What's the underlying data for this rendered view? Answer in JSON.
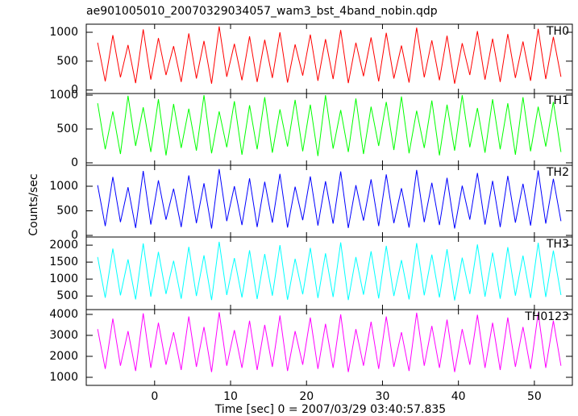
{
  "chart_data": [
    {
      "type": "line",
      "title": "ae901005010_20070329034057_wam3_bst_4band_nobin.qdp",
      "ylabel": "Counts/sec",
      "x": [
        -7.5,
        -6.5,
        -5.5,
        -4.5,
        -3.5,
        -2.5,
        -1.5,
        -0.5,
        0.5,
        1.5,
        2.5,
        3.5,
        4.5,
        5.5,
        6.5,
        7.5,
        8.5,
        9.5,
        10.5,
        11.5,
        12.5,
        13.5,
        14.5,
        15.5,
        16.5,
        17.5,
        18.5,
        19.5,
        20.5,
        21.5,
        22.5,
        23.5,
        24.5,
        25.5,
        26.5,
        27.5,
        28.5,
        29.5,
        30.5,
        31.5,
        32.5,
        33.5,
        34.5,
        35.5,
        36.5,
        37.5,
        38.5,
        39.5,
        40.5,
        41.5,
        42.5,
        43.5,
        44.5,
        45.5,
        46.5,
        47.5,
        48.5,
        49.5,
        50.5,
        51.5,
        52.5,
        53.5
      ],
      "series": [
        {
          "name": "TH0",
          "color": "#ff0000",
          "values": [
            820,
            150,
            950,
            220,
            780,
            120,
            1050,
            180,
            900,
            260,
            760,
            140,
            980,
            200,
            850,
            110,
            1100,
            230,
            800,
            170,
            930,
            140,
            870,
            210,
            1000,
            130,
            790,
            250,
            960,
            160,
            880,
            190,
            1040,
            120,
            820,
            240,
            910,
            150,
            990,
            200,
            770,
            130,
            1080,
            220,
            860,
            170,
            940,
            110,
            810,
            260,
            1020,
            180,
            890,
            140,
            970,
            210,
            840,
            160,
            1060,
            190,
            920,
            230
          ]
        }
      ],
      "ylim": [
        -60,
        1140
      ],
      "yticks": [
        0,
        500,
        1000
      ]
    },
    {
      "type": "line",
      "x": [
        -7.5,
        -6.5,
        -5.5,
        -4.5,
        -3.5,
        -2.5,
        -1.5,
        -0.5,
        0.5,
        1.5,
        2.5,
        3.5,
        4.5,
        5.5,
        6.5,
        7.5,
        8.5,
        9.5,
        10.5,
        11.5,
        12.5,
        13.5,
        14.5,
        15.5,
        16.5,
        17.5,
        18.5,
        19.5,
        20.5,
        21.5,
        22.5,
        23.5,
        24.5,
        25.5,
        26.5,
        27.5,
        28.5,
        29.5,
        30.5,
        31.5,
        32.5,
        33.5,
        34.5,
        35.5,
        36.5,
        37.5,
        38.5,
        39.5,
        40.5,
        41.5,
        42.5,
        43.5,
        44.5,
        45.5,
        46.5,
        47.5,
        48.5,
        49.5,
        50.5,
        51.5,
        52.5,
        53.5
      ],
      "series": [
        {
          "name": "TH1",
          "color": "#00ff00",
          "values": [
            880,
            200,
            760,
            130,
            990,
            250,
            820,
            160,
            940,
            110,
            870,
            220,
            800,
            180,
            1000,
            140,
            760,
            230,
            910,
            120,
            850,
            200,
            970,
            150,
            790,
            240,
            930,
            170,
            860,
            100,
            1000,
            210,
            780,
            160,
            950,
            130,
            830,
            250,
            900,
            190,
            980,
            140,
            770,
            220,
            920,
            110,
            860,
            180,
            1000,
            230,
            810,
            150,
            940,
            200,
            880,
            120,
            970,
            170,
            830,
            240,
            900,
            160
          ]
        }
      ],
      "ylim": [
        -36,
        1024
      ],
      "yticks": [
        0,
        500,
        1000
      ]
    },
    {
      "type": "line",
      "x": [
        -7.5,
        -6.5,
        -5.5,
        -4.5,
        -3.5,
        -2.5,
        -1.5,
        -0.5,
        0.5,
        1.5,
        2.5,
        3.5,
        4.5,
        5.5,
        6.5,
        7.5,
        8.5,
        9.5,
        10.5,
        11.5,
        12.5,
        13.5,
        14.5,
        15.5,
        16.5,
        17.5,
        18.5,
        19.5,
        20.5,
        21.5,
        22.5,
        23.5,
        24.5,
        25.5,
        26.5,
        27.5,
        28.5,
        29.5,
        30.5,
        31.5,
        32.5,
        33.5,
        34.5,
        35.5,
        36.5,
        37.5,
        38.5,
        39.5,
        40.5,
        41.5,
        42.5,
        43.5,
        44.5,
        45.5,
        46.5,
        47.5,
        48.5,
        49.5,
        50.5,
        51.5,
        52.5,
        53.5
      ],
      "series": [
        {
          "name": "TH2",
          "color": "#0000ff",
          "values": [
            1020,
            190,
            1190,
            270,
            980,
            150,
            1310,
            220,
            1120,
            320,
            950,
            170,
            1220,
            250,
            1060,
            140,
            1350,
            290,
            1000,
            210,
            1160,
            170,
            1090,
            260,
            1250,
            160,
            990,
            310,
            1200,
            200,
            1100,
            240,
            1300,
            150,
            1020,
            300,
            1140,
            190,
            1240,
            250,
            960,
            160,
            1330,
            270,
            1070,
            210,
            1170,
            140,
            1010,
            320,
            1270,
            220,
            1110,
            170,
            1210,
            260,
            1050,
            200,
            1320,
            240,
            1150,
            290
          ]
        }
      ],
      "ylim": [
        -33,
        1426
      ],
      "yticks": [
        0,
        500,
        1000
      ]
    },
    {
      "type": "line",
      "x": [
        -7.5,
        -6.5,
        -5.5,
        -4.5,
        -3.5,
        -2.5,
        -1.5,
        -0.5,
        0.5,
        1.5,
        2.5,
        3.5,
        4.5,
        5.5,
        6.5,
        7.5,
        8.5,
        9.5,
        10.5,
        11.5,
        12.5,
        13.5,
        14.5,
        15.5,
        16.5,
        17.5,
        18.5,
        19.5,
        20.5,
        21.5,
        22.5,
        23.5,
        24.5,
        25.5,
        26.5,
        27.5,
        28.5,
        29.5,
        30.5,
        31.5,
        32.5,
        33.5,
        34.5,
        35.5,
        36.5,
        37.5,
        38.5,
        39.5,
        40.5,
        41.5,
        42.5,
        43.5,
        44.5,
        45.5,
        46.5,
        47.5,
        48.5,
        49.5,
        50.5,
        51.5,
        52.5,
        53.5
      ],
      "series": [
        {
          "name": "TH3",
          "color": "#00ffff",
          "values": [
            1650,
            450,
            1900,
            520,
            1580,
            400,
            2050,
            480,
            1800,
            560,
            1540,
            420,
            1950,
            500,
            1700,
            380,
            2100,
            530,
            1620,
            460,
            1850,
            410,
            1740,
            510,
            2000,
            390,
            1600,
            550,
            1920,
            440,
            1760,
            470,
            2080,
            380,
            1650,
            540,
            1820,
            430,
            1980,
            500,
            1560,
            400,
            2060,
            520,
            1720,
            460,
            1880,
            370,
            1630,
            560,
            2020,
            480,
            1780,
            420,
            1940,
            510,
            1690,
            440,
            2070,
            470,
            1840,
            530
          ]
        }
      ],
      "ylim": [
        100,
        2240
      ],
      "yticks": [
        500,
        1000,
        1500,
        2000
      ]
    },
    {
      "type": "line",
      "xlabel": "Time [sec] 0 = 2007/03/29 03:40:57.835",
      "x": [
        -7.5,
        -6.5,
        -5.5,
        -4.5,
        -3.5,
        -2.5,
        -1.5,
        -0.5,
        0.5,
        1.5,
        2.5,
        3.5,
        4.5,
        5.5,
        6.5,
        7.5,
        8.5,
        9.5,
        10.5,
        11.5,
        12.5,
        13.5,
        14.5,
        15.5,
        16.5,
        17.5,
        18.5,
        19.5,
        20.5,
        21.5,
        22.5,
        23.5,
        24.5,
        25.5,
        26.5,
        27.5,
        28.5,
        29.5,
        30.5,
        31.5,
        32.5,
        33.5,
        34.5,
        35.5,
        36.5,
        37.5,
        38.5,
        39.5,
        40.5,
        41.5,
        42.5,
        43.5,
        44.5,
        45.5,
        46.5,
        47.5,
        48.5,
        49.5,
        50.5,
        51.5,
        52.5,
        53.5
      ],
      "series": [
        {
          "name": "TH0123",
          "color": "#ff00ff",
          "values": [
            3300,
            1400,
            3800,
            1550,
            3200,
            1300,
            4050,
            1450,
            3600,
            1600,
            3150,
            1350,
            3900,
            1500,
            3400,
            1250,
            4100,
            1550,
            3250,
            1450,
            3700,
            1350,
            3500,
            1500,
            3950,
            1300,
            3200,
            1600,
            3850,
            1400,
            3550,
            1450,
            4000,
            1250,
            3300,
            1550,
            3650,
            1400,
            3900,
            1500,
            3150,
            1300,
            4080,
            1550,
            3450,
            1450,
            3750,
            1250,
            3300,
            1600,
            3980,
            1450,
            3600,
            1350,
            3850,
            1500,
            3400,
            1400,
            4060,
            1450,
            3700,
            1550
          ]
        }
      ],
      "ylim": [
        615,
        4230
      ],
      "yticks": [
        1000,
        2000,
        3000,
        4000
      ],
      "xlim": [
        -9,
        55
      ],
      "xticks": [
        0,
        10,
        20,
        30,
        40,
        50
      ]
    }
  ]
}
